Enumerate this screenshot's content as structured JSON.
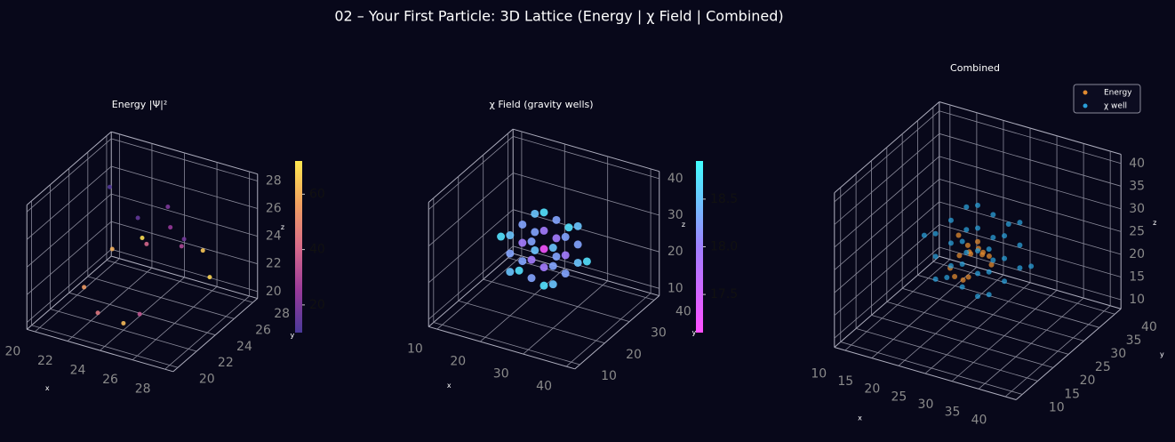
{
  "title": "02 – Your First Particle: 3D Lattice (Energy | χ Field | Combined)",
  "chart_data": [
    {
      "type": "scatter3d",
      "title": "Energy |Ψ|²",
      "xlabel": "x",
      "ylabel": "y",
      "zlabel": "z",
      "xlim": [
        19.5,
        28.5
      ],
      "ylim": [
        19.5,
        28.5
      ],
      "zlim": [
        19.5,
        28.5
      ],
      "xticks": [
        20,
        22,
        24,
        26,
        28
      ],
      "yticks": [
        20,
        22,
        24,
        26,
        28
      ],
      "zticks": [
        20,
        22,
        24,
        26,
        28
      ],
      "colormap": [
        "#4a3a9a",
        "#9a3a9a",
        "#d86a8a",
        "#f0a060",
        "#ffe850"
      ],
      "clim": [
        10,
        72
      ],
      "cticks": [
        20,
        40,
        60
      ],
      "series": [
        {
          "x": [
            21,
            22,
            24,
            25,
            26,
            27,
            23,
            24,
            26,
            22,
            25,
            27,
            24,
            21,
            26
          ],
          "y": [
            26,
            27,
            24,
            25,
            27,
            23,
            21,
            22,
            25,
            24,
            22,
            26,
            27,
            23,
            21
          ],
          "z": [
            22,
            24,
            25,
            27,
            23,
            26,
            21,
            20,
            25,
            28,
            21,
            22,
            24,
            21,
            27
          ],
          "values": [
            60,
            15,
            70,
            20,
            65,
            30,
            45,
            62,
            18,
            12,
            35,
            68,
            25,
            55,
            40
          ]
        }
      ]
    },
    {
      "type": "scatter3d",
      "title": "χ Field (gravity wells)",
      "xlabel": "x",
      "ylabel": "y",
      "zlabel": "z",
      "xlim": [
        8,
        42
      ],
      "ylim": [
        8,
        42
      ],
      "zlim": [
        8,
        42
      ],
      "xticks": [
        10,
        20,
        30,
        40
      ],
      "yticks": [
        10,
        20,
        30,
        40
      ],
      "zticks": [
        10,
        20,
        30,
        40
      ],
      "colormap": [
        "#ff50ff",
        "#a080ff",
        "#40ffff"
      ],
      "clim": [
        17.1,
        18.9
      ],
      "cticks": [
        17.5,
        {
          "value": 18,
          "label": "18.0"
        },
        18.5
      ],
      "series": [
        {
          "x": [
            20,
            20,
            20,
            20,
            20,
            20,
            20,
            20,
            20,
            25,
            25,
            25,
            25,
            25,
            25,
            25,
            25,
            25,
            30,
            30,
            30,
            30,
            30,
            30,
            30,
            30,
            30,
            15,
            35,
            25,
            25,
            25,
            25
          ],
          "y": [
            20,
            20,
            20,
            25,
            25,
            25,
            30,
            30,
            30,
            20,
            20,
            20,
            25,
            25,
            25,
            30,
            30,
            30,
            20,
            20,
            20,
            25,
            25,
            25,
            30,
            30,
            30,
            25,
            25,
            15,
            35,
            25,
            25
          ],
          "z": [
            20,
            25,
            30,
            20,
            25,
            30,
            20,
            25,
            30,
            20,
            25,
            30,
            20,
            25,
            30,
            20,
            25,
            30,
            20,
            25,
            30,
            20,
            25,
            30,
            20,
            25,
            30,
            25,
            25,
            25,
            25,
            15,
            35
          ],
          "values": [
            18.5,
            18.26,
            18.5,
            18.26,
            17.95,
            18.26,
            18.5,
            18.26,
            18.5,
            18.26,
            17.95,
            18.26,
            17.95,
            17.2,
            17.95,
            18.26,
            17.95,
            18.26,
            18.5,
            18.26,
            18.5,
            18.26,
            17.95,
            18.26,
            18.5,
            18.26,
            18.5,
            18.7,
            18.7,
            18.7,
            18.7,
            18.7,
            18.7
          ]
        }
      ]
    },
    {
      "type": "scatter3d",
      "title": "Combined",
      "xlabel": "x",
      "ylabel": "y",
      "zlabel": "z",
      "xlim": [
        8,
        42
      ],
      "ylim": [
        8,
        42
      ],
      "zlim": [
        8,
        42
      ],
      "xticks": [
        10,
        15,
        20,
        25,
        30,
        35,
        40
      ],
      "yticks": [
        10,
        15,
        20,
        25,
        30,
        35,
        40
      ],
      "zticks": [
        10,
        15,
        20,
        25,
        30,
        35,
        40
      ],
      "legend": "upper right",
      "series": [
        {
          "name": "Energy",
          "color": "#e08a30",
          "x": [
            21,
            22,
            24,
            25,
            26,
            27,
            23,
            24,
            26,
            22,
            25,
            27,
            24,
            21,
            26
          ],
          "y": [
            26,
            27,
            24,
            25,
            27,
            23,
            21,
            22,
            25,
            24,
            22,
            26,
            27,
            23,
            21
          ],
          "z": [
            22,
            24,
            25,
            27,
            23,
            26,
            21,
            20,
            25,
            28,
            21,
            22,
            24,
            21,
            27
          ]
        },
        {
          "name": "χ well",
          "color": "#2a9fd8",
          "x": [
            20,
            20,
            20,
            20,
            20,
            20,
            20,
            20,
            20,
            25,
            25,
            25,
            25,
            25,
            25,
            25,
            25,
            25,
            30,
            30,
            30,
            30,
            30,
            30,
            30,
            30,
            30,
            15,
            35,
            25,
            25,
            25,
            25
          ],
          "y": [
            20,
            20,
            20,
            25,
            25,
            25,
            30,
            30,
            30,
            20,
            20,
            20,
            25,
            25,
            25,
            30,
            30,
            30,
            20,
            20,
            20,
            25,
            25,
            25,
            30,
            30,
            30,
            25,
            25,
            15,
            35,
            25,
            25
          ],
          "z": [
            20,
            25,
            30,
            20,
            25,
            30,
            20,
            25,
            30,
            20,
            25,
            30,
            20,
            25,
            30,
            20,
            25,
            30,
            20,
            25,
            30,
            20,
            25,
            30,
            20,
            25,
            30,
            25,
            25,
            25,
            25,
            15,
            35
          ]
        }
      ]
    }
  ]
}
